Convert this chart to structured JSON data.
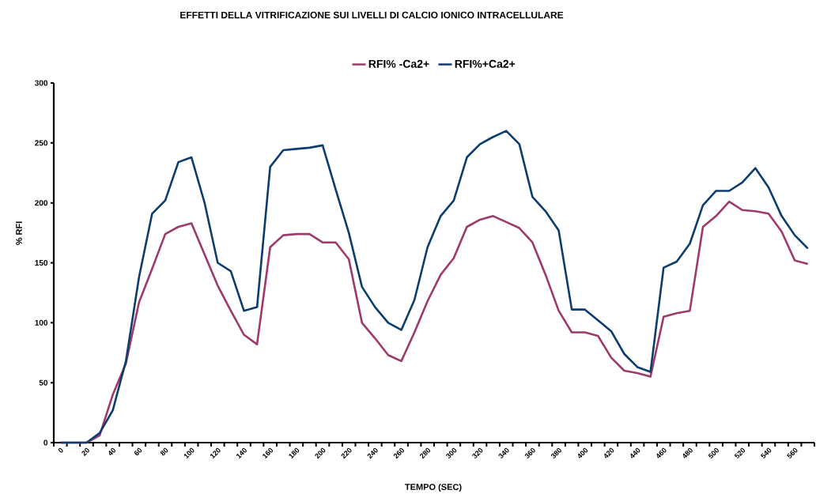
{
  "chart_data": {
    "type": "line",
    "title": "EFFETTI DELLA VITRIFICAZIONE SUI LIVELLI DI CALCIO IONICO INTRACELLULARE",
    "xlabel": "TEMPO (SEC)",
    "ylabel": "% RFI",
    "categories": [
      "0",
      null,
      "20",
      null,
      "40",
      null,
      "60",
      null,
      "80",
      null,
      "100",
      null,
      "120",
      null,
      "140",
      null,
      "160",
      null,
      "180",
      null,
      "200",
      null,
      "220",
      null,
      "240",
      null,
      "260",
      null,
      "280",
      null,
      "300",
      null,
      "320",
      null,
      "340",
      null,
      "360",
      null,
      "380",
      null,
      "400",
      null,
      "420",
      null,
      "440",
      null,
      "460",
      null,
      "480",
      null,
      "500",
      null,
      "520",
      null,
      "540",
      null,
      "560",
      null
    ],
    "series": [
      {
        "name": "RFI% -Ca2+",
        "color": "#9e3a6a",
        "values": [
          0,
          0,
          0,
          6,
          40,
          66,
          117,
          145,
          174,
          180,
          183,
          157,
          131,
          110,
          90,
          82,
          163,
          173,
          174,
          174,
          167,
          167,
          153,
          100,
          87,
          73,
          68,
          92,
          118,
          140,
          154,
          180,
          186,
          189,
          184,
          179,
          167,
          140,
          110,
          92,
          92,
          89,
          71,
          60,
          58,
          55,
          105,
          108,
          110,
          180,
          189,
          201,
          194,
          193,
          191,
          176,
          152,
          149
        ]
      },
      {
        "name": "RFI%+Ca2+",
        "color": "#0d3c6e",
        "values": [
          0,
          0,
          0,
          8,
          27,
          68,
          138,
          191,
          202,
          234,
          238,
          200,
          150,
          143,
          110,
          113,
          230,
          244,
          245,
          246,
          248,
          211,
          175,
          130,
          113,
          100,
          94,
          119,
          163,
          189,
          202,
          238,
          249,
          255,
          260,
          249,
          205,
          193,
          177,
          111,
          111,
          102,
          93,
          74,
          63,
          59,
          146,
          151,
          166,
          198,
          210,
          210,
          217,
          229,
          213,
          189,
          173,
          162
        ]
      }
    ],
    "ylim": [
      0,
      300
    ],
    "yticks": [
      0,
      50,
      100,
      150,
      200,
      250,
      300
    ],
    "legend": "top"
  }
}
